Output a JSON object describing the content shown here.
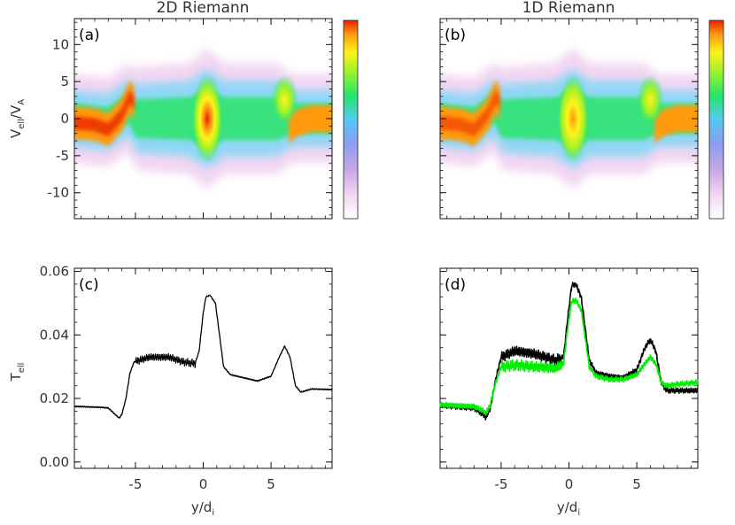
{
  "chart_data": [
    {
      "type": "heatmap",
      "title": "2D Riemann",
      "panel_label": "(a)",
      "ylabel": "V",
      "ylabel_sub": "ell",
      "ylabel_rest": "/V",
      "ylabel_sub2": "A",
      "xlim": [
        -9.5,
        9.5
      ],
      "ylim": [
        -13.5,
        13.5
      ],
      "yticks": [
        -10,
        -5,
        0,
        5,
        10
      ],
      "xticks": [
        -5,
        0,
        5
      ],
      "colorbar": "rainbow",
      "band_center": [
        {
          "y": -9.5,
          "v": 0.0
        },
        {
          "y": -7.0,
          "v": -0.5
        },
        {
          "y": -5.5,
          "v": 1.5
        },
        {
          "y": -5.0,
          "v": 0.0
        },
        {
          "y": 0.0,
          "v": 0.0
        },
        {
          "y": 6.0,
          "v": 0.0
        },
        {
          "y": 9.5,
          "v": 0.0
        }
      ],
      "band_halfwidth": [
        {
          "y": -9.5,
          "w": 4.5
        },
        {
          "y": -5.5,
          "w": 4.5
        },
        {
          "y": -4.8,
          "w": 5.5
        },
        {
          "y": -1.0,
          "w": 6.0
        },
        {
          "y": 0.3,
          "w": 8.0
        },
        {
          "y": 1.5,
          "w": 6.0
        },
        {
          "y": 5.5,
          "w": 6.0
        },
        {
          "y": 6.5,
          "w": 4.5
        },
        {
          "y": 9.5,
          "w": 4.5
        }
      ],
      "peak": {
        "y": 0.3,
        "v": 0.0
      }
    },
    {
      "type": "heatmap",
      "title": "1D Riemann",
      "panel_label": "(b)",
      "xlim": [
        -9.5,
        9.5
      ],
      "ylim": [
        -13.5,
        13.5
      ],
      "yticks": [
        -10,
        -5,
        0,
        5,
        10
      ],
      "xticks": [
        -5,
        0,
        5
      ],
      "colorbar": "rainbow",
      "peak": {
        "y": 0.3,
        "v": 0.0
      }
    },
    {
      "type": "line",
      "panel_label": "(c)",
      "ylabel": "T",
      "ylabel_sub": "ell",
      "xlabel": "y/d",
      "xlabel_sub": "i",
      "xlim": [
        -9.5,
        9.5
      ],
      "ylim": [
        -0.002,
        0.061
      ],
      "yticks": [
        0.0,
        0.02,
        0.04,
        0.06
      ],
      "ytick_labels": [
        "0.00",
        "0.02",
        "0.04",
        "0.06"
      ],
      "xticks": [
        -5,
        0,
        5
      ],
      "series": [
        {
          "color": "#000000",
          "points": [
            [
              -9.5,
              0.0175
            ],
            [
              -7.5,
              0.0172
            ],
            [
              -7.0,
              0.017
            ],
            [
              -6.5,
              0.015
            ],
            [
              -6.2,
              0.0138
            ],
            [
              -6.0,
              0.015
            ],
            [
              -5.7,
              0.02
            ],
            [
              -5.4,
              0.028
            ],
            [
              -5.1,
              0.0315
            ],
            [
              -4.0,
              0.033
            ],
            [
              -2.5,
              0.033
            ],
            [
              -1.5,
              0.0315
            ],
            [
              -0.6,
              0.031
            ],
            [
              -0.3,
              0.035
            ],
            [
              0.0,
              0.047
            ],
            [
              0.2,
              0.052
            ],
            [
              0.5,
              0.0525
            ],
            [
              0.9,
              0.05
            ],
            [
              1.2,
              0.04
            ],
            [
              1.5,
              0.03
            ],
            [
              2.0,
              0.0275
            ],
            [
              3.0,
              0.0265
            ],
            [
              4.0,
              0.0255
            ],
            [
              5.0,
              0.027
            ],
            [
              5.6,
              0.033
            ],
            [
              6.0,
              0.0365
            ],
            [
              6.4,
              0.033
            ],
            [
              6.8,
              0.024
            ],
            [
              7.2,
              0.022
            ],
            [
              8.0,
              0.023
            ],
            [
              9.5,
              0.0228
            ]
          ]
        }
      ]
    },
    {
      "type": "line",
      "panel_label": "(d)",
      "xlabel": "y/d",
      "xlabel_sub": "i",
      "xlim": [
        -9.5,
        9.5
      ],
      "ylim": [
        -0.002,
        0.061
      ],
      "yticks": [
        0.0,
        0.02,
        0.04,
        0.06
      ],
      "xticks": [
        -5,
        0,
        5
      ],
      "series": [
        {
          "color": "#000000",
          "points": [
            [
              -9.5,
              0.0178
            ],
            [
              -7.0,
              0.017
            ],
            [
              -6.5,
              0.0155
            ],
            [
              -6.1,
              0.014
            ],
            [
              -5.8,
              0.017
            ],
            [
              -5.4,
              0.026
            ],
            [
              -5.0,
              0.033
            ],
            [
              -4.0,
              0.035
            ],
            [
              -2.5,
              0.034
            ],
            [
              -1.0,
              0.032
            ],
            [
              -0.4,
              0.033
            ],
            [
              -0.1,
              0.045
            ],
            [
              0.2,
              0.0555
            ],
            [
              0.5,
              0.056
            ],
            [
              0.9,
              0.052
            ],
            [
              1.2,
              0.042
            ],
            [
              1.5,
              0.032
            ],
            [
              2.0,
              0.028
            ],
            [
              3.0,
              0.027
            ],
            [
              4.0,
              0.0265
            ],
            [
              5.0,
              0.029
            ],
            [
              5.6,
              0.036
            ],
            [
              6.0,
              0.0385
            ],
            [
              6.4,
              0.035
            ],
            [
              6.8,
              0.025
            ],
            [
              7.2,
              0.0225
            ],
            [
              8.0,
              0.0225
            ],
            [
              9.5,
              0.0225
            ]
          ]
        },
        {
          "color": "#00ee00",
          "points": [
            [
              -9.5,
              0.018
            ],
            [
              -7.0,
              0.0175
            ],
            [
              -6.5,
              0.0165
            ],
            [
              -6.1,
              0.0155
            ],
            [
              -5.8,
              0.018
            ],
            [
              -5.4,
              0.025
            ],
            [
              -5.0,
              0.03
            ],
            [
              -4.0,
              0.0305
            ],
            [
              -2.5,
              0.03
            ],
            [
              -1.0,
              0.0295
            ],
            [
              -0.4,
              0.031
            ],
            [
              -0.1,
              0.042
            ],
            [
              0.2,
              0.0505
            ],
            [
              0.5,
              0.051
            ],
            [
              0.9,
              0.048
            ],
            [
              1.2,
              0.039
            ],
            [
              1.5,
              0.03
            ],
            [
              2.0,
              0.027
            ],
            [
              3.0,
              0.026
            ],
            [
              4.0,
              0.026
            ],
            [
              5.0,
              0.0275
            ],
            [
              5.6,
              0.031
            ],
            [
              6.0,
              0.033
            ],
            [
              6.4,
              0.031
            ],
            [
              6.8,
              0.025
            ],
            [
              7.2,
              0.024
            ],
            [
              8.0,
              0.0245
            ],
            [
              9.5,
              0.025
            ]
          ]
        }
      ]
    }
  ]
}
